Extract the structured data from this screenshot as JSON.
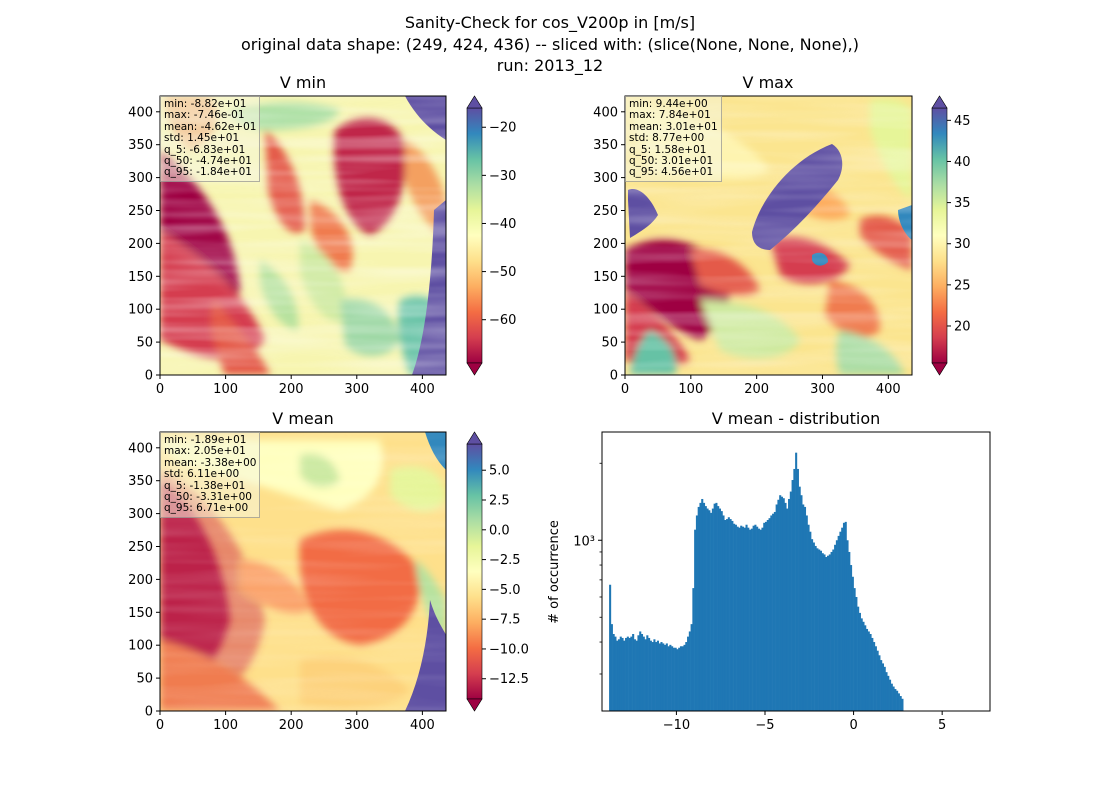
{
  "suptitle": {
    "line1": "Sanity-Check for cos_V200p in [m/s]",
    "line2": "original data shape: (249, 424, 436) -- sliced with: (slice(None, None, None),)",
    "line3": "run: 2013_12"
  },
  "colors": {
    "spectral": [
      "#9e0142",
      "#d53e4f",
      "#f46d43",
      "#fdae61",
      "#fee08b",
      "#ffffbf",
      "#e6f598",
      "#abdda4",
      "#66c2a5",
      "#3288bd",
      "#5e4fa2"
    ],
    "hist_bar": "#1f77b4",
    "stats_bg": "#f5f5dc"
  },
  "panels": [
    {
      "title": "V min",
      "xticks": [
        "0",
        "100",
        "200",
        "300",
        "400"
      ],
      "yticks": [
        "0",
        "50",
        "100",
        "150",
        "200",
        "250",
        "300",
        "350",
        "400"
      ],
      "colorbar": {
        "ticks": [
          "−60",
          "−50",
          "−40",
          "−30",
          "−20"
        ],
        "min": -69,
        "max": -16,
        "tick_values": [
          -60,
          -50,
          -40,
          -30,
          -20
        ]
      },
      "stats": [
        "min: -8.82e+01",
        "max: -7.46e-01",
        "mean: -4.62e+01",
        "std: 1.45e+01",
        "q_5: -6.83e+01",
        "q_50: -4.74e+01",
        "q_95: -1.84e+01"
      ]
    },
    {
      "title": "V max",
      "xticks": [
        "0",
        "100",
        "200",
        "300",
        "400"
      ],
      "yticks": [
        "0",
        "50",
        "100",
        "150",
        "200",
        "250",
        "300",
        "350",
        "400"
      ],
      "colorbar": {
        "ticks": [
          "20",
          "25",
          "30",
          "35",
          "40",
          "45"
        ],
        "min": 15.5,
        "max": 46.5,
        "tick_values": [
          20,
          25,
          30,
          35,
          40,
          45
        ]
      },
      "stats": [
        "min: 9.44e+00",
        "max: 7.84e+01",
        "mean: 3.01e+01",
        "std: 8.77e+00",
        "q_5: 1.58e+01",
        "q_50: 3.01e+01",
        "q_95: 4.56e+01"
      ]
    },
    {
      "title": "V mean",
      "xticks": [
        "0",
        "100",
        "200",
        "300",
        "400"
      ],
      "yticks": [
        "0",
        "50",
        "100",
        "150",
        "200",
        "250",
        "300",
        "350",
        "400"
      ],
      "colorbar": {
        "ticks": [
          "−12.5",
          "−10.0",
          "−7.5",
          "−5.0",
          "−2.5",
          "0.0",
          "2.5",
          "5.0"
        ],
        "min": -14.2,
        "max": 7.2,
        "tick_values": [
          -12.5,
          -10,
          -7.5,
          -5,
          -2.5,
          0,
          2.5,
          5
        ]
      },
      "stats": [
        "min: -1.89e+01",
        "max: 2.05e+01",
        "mean: -3.38e+00",
        "std: 6.11e+00",
        "q_5: -1.38e+01",
        "q_50: -3.31e+00",
        "q_95: 6.71e+00"
      ]
    }
  ],
  "chart_data": {
    "type": "bar",
    "title": "V mean - distribution",
    "xlabel": "",
    "ylabel": "# of occurrence",
    "yscale": "log",
    "xlim": [
      -14.2,
      7.7
    ],
    "ylim": [
      215,
      2650
    ],
    "xticks": [
      -10,
      -5,
      0,
      5
    ],
    "xtick_labels": [
      "−10",
      "−5",
      "0",
      "5"
    ],
    "yticks": [
      1000
    ],
    "ytick_labels": [
      "10³"
    ],
    "bin_width": 0.1,
    "x_start": -13.8,
    "values": [
      670,
      470,
      430,
      420,
      405,
      410,
      420,
      415,
      405,
      415,
      420,
      415,
      420,
      430,
      410,
      405,
      425,
      440,
      430,
      420,
      410,
      425,
      415,
      405,
      400,
      410,
      400,
      405,
      395,
      400,
      395,
      390,
      395,
      385,
      390,
      385,
      380,
      380,
      375,
      380,
      385,
      385,
      390,
      400,
      420,
      440,
      470,
      650,
      1100,
      1250,
      1350,
      1400,
      1450,
      1400,
      1360,
      1330,
      1310,
      1280,
      1330,
      1390,
      1400,
      1360,
      1330,
      1300,
      1250,
      1200,
      1210,
      1230,
      1210,
      1190,
      1160,
      1150,
      1130,
      1120,
      1140,
      1130,
      1120,
      1150,
      1120,
      1100,
      1110,
      1140,
      1150,
      1130,
      1110,
      1100,
      1120,
      1170,
      1180,
      1200,
      1220,
      1250,
      1270,
      1290,
      1380,
      1440,
      1500,
      1480,
      1460,
      1400,
      1330,
      1450,
      1550,
      1720,
      1900,
      2200,
      1900,
      1620,
      1500,
      1380,
      1350,
      1250,
      1150,
      1080,
      1010,
      980,
      950,
      930,
      920,
      910,
      890,
      880,
      860,
      870,
      880,
      900,
      920,
      960,
      1000,
      1040,
      1080,
      1120,
      1170,
      1180,
      1000,
      900,
      800,
      720,
      650,
      600,
      550,
      520,
      495,
      480,
      465,
      450,
      440,
      430,
      415,
      400,
      385,
      370,
      355,
      340,
      330,
      320,
      305,
      295,
      285,
      275,
      268,
      262,
      258,
      252,
      246,
      240
    ]
  }
}
